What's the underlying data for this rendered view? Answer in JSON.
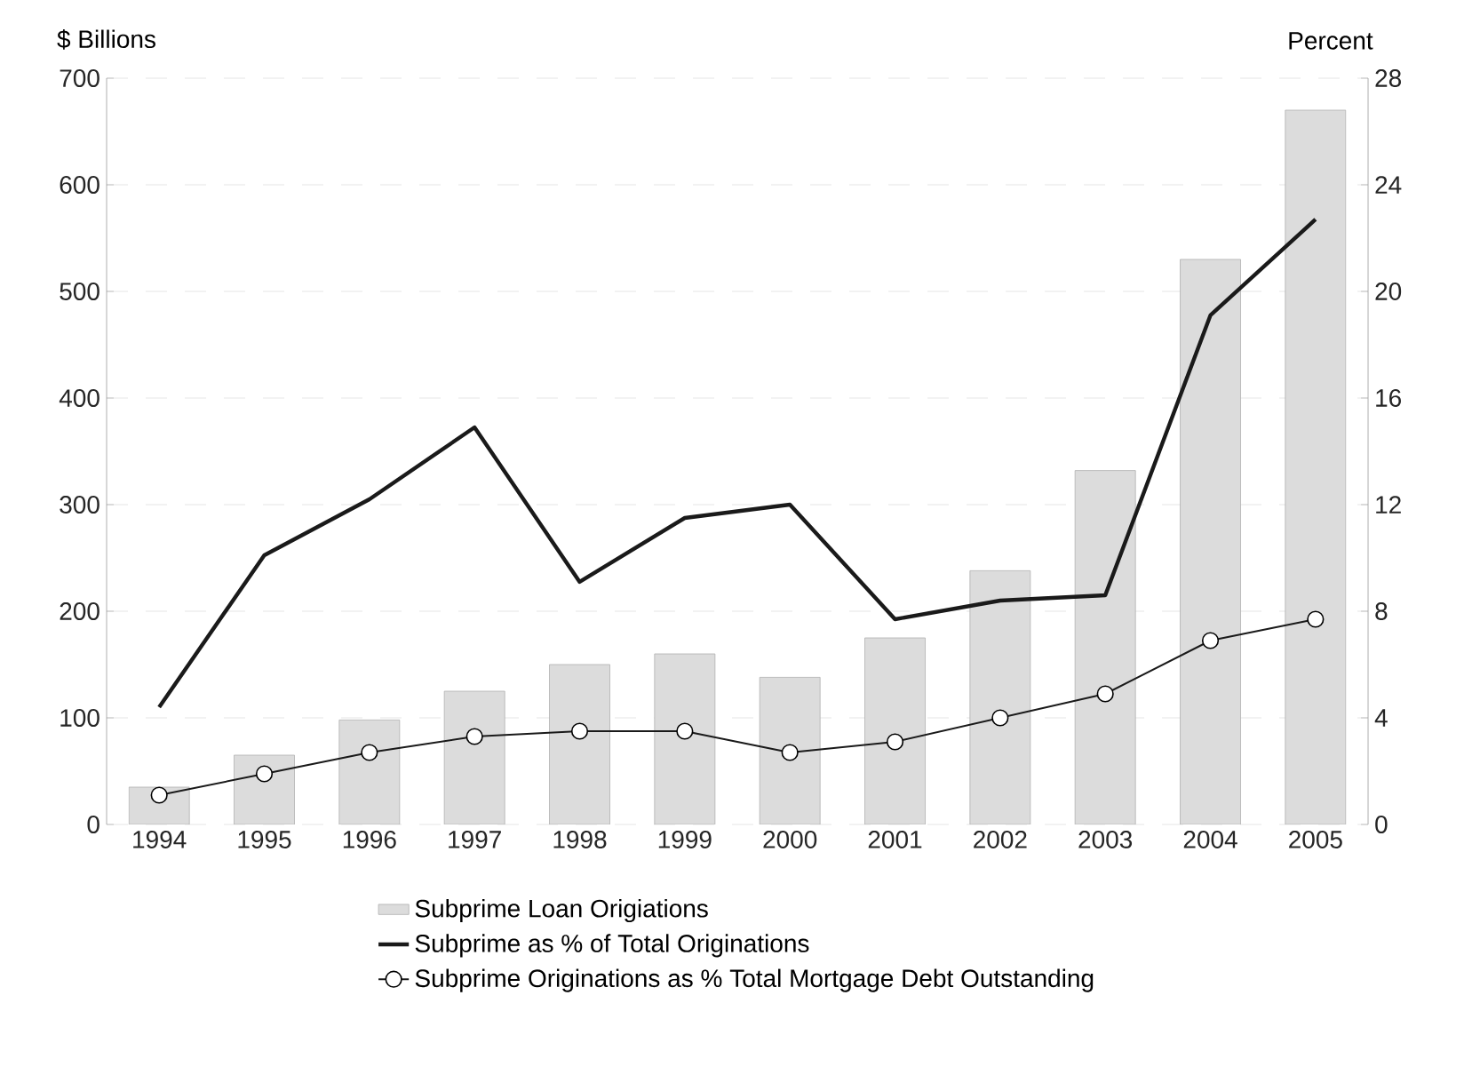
{
  "chart_data": {
    "type": "bar",
    "ylabel": "$ Billions",
    "y2label": "Percent",
    "categories": [
      "1994",
      "1995",
      "1996",
      "1997",
      "1998",
      "1999",
      "2000",
      "2001",
      "2002",
      "2003",
      "2004",
      "2005"
    ],
    "series": [
      {
        "name": "Subprime Loan Origiations",
        "color": "#dcdcdc",
        "values": [
          35,
          65,
          98,
          125,
          150,
          160,
          138,
          175,
          238,
          332,
          530,
          670
        ]
      },
      {
        "name": "Subprime as % of Total Originations",
        "type": "line",
        "axis": "y2",
        "color": "#1a1a1a",
        "marker": "none",
        "values": [
          4.4,
          10.1,
          12.2,
          14.9,
          9.1,
          11.5,
          12.0,
          7.7,
          8.4,
          8.6,
          19.1,
          22.7
        ]
      },
      {
        "name": "Subprime Originations as % Total Mortgage Debt Outstanding",
        "type": "line",
        "axis": "y2",
        "color": "#1a1a1a",
        "marker": "circle",
        "values": [
          1.1,
          1.9,
          2.7,
          3.3,
          3.5,
          3.5,
          2.7,
          3.1,
          4.0,
          4.9,
          6.9,
          7.7
        ]
      }
    ],
    "ylim": [
      0,
      700
    ],
    "yticks": [
      0,
      100,
      200,
      300,
      400,
      500,
      600,
      700
    ],
    "y2lim": [
      0,
      28
    ],
    "y2ticks": [
      0,
      4,
      8,
      12,
      16,
      20,
      24,
      28
    ],
    "grid": "y",
    "legend": "bottom"
  }
}
